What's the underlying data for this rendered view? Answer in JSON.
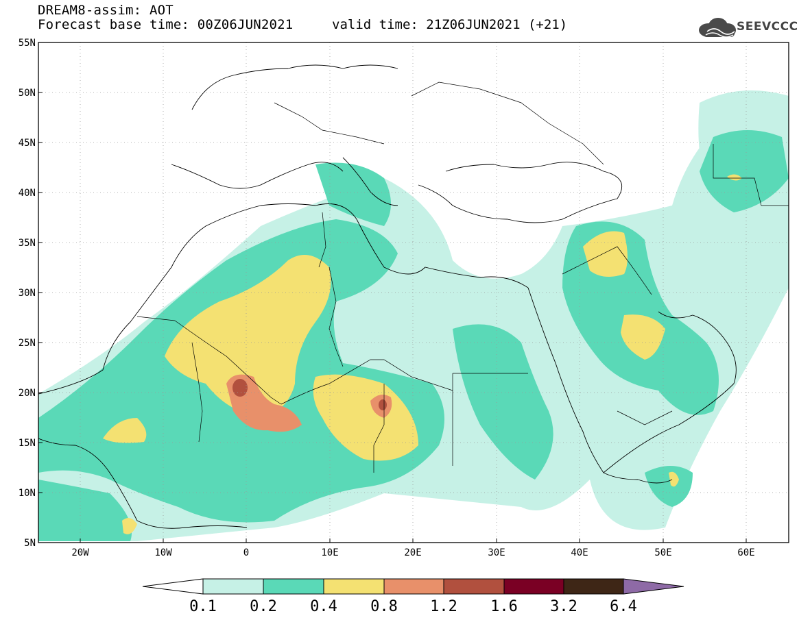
{
  "header": {
    "model_line": "DREAM8-assim: AOT",
    "base_time": "Forecast base time: 00Z06JUN2021",
    "valid_time": "valid time: 21Z06JUN2021 (+21)"
  },
  "logo": {
    "text": "SEEVCCC",
    "icon": "cloud-icon"
  },
  "map": {
    "projection": "lat-lon",
    "lon_range": [
      -25,
      65
    ],
    "lat_range": [
      5,
      55
    ],
    "lat_ticks": [
      "55N",
      "50N",
      "45N",
      "40N",
      "35N",
      "30N",
      "25N",
      "20N",
      "15N",
      "10N",
      "5N"
    ],
    "lon_ticks": [
      "20W",
      "10W",
      "0",
      "10E",
      "20E",
      "30E",
      "40E",
      "50E",
      "60E"
    ],
    "grid": "dotted"
  },
  "legend": {
    "labels": [
      "0.1",
      "0.2",
      "0.4",
      "0.8",
      "1.2",
      "1.6",
      "3.2",
      "6.4"
    ],
    "colors": [
      "#c6f1e6",
      "#5ad9b7",
      "#f4e172",
      "#e8906a",
      "#b1503e",
      "#7a0024",
      "#3e2616",
      "#8e6aa6"
    ]
  }
}
